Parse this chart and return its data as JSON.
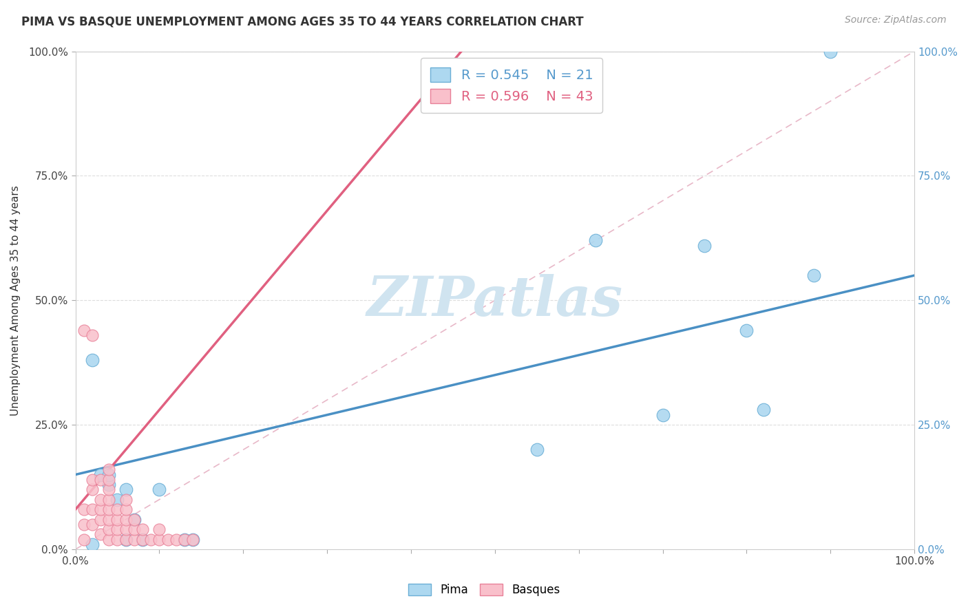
{
  "title": "PIMA VS BASQUE UNEMPLOYMENT AMONG AGES 35 TO 44 YEARS CORRELATION CHART",
  "source": "Source: ZipAtlas.com",
  "ylabel": "Unemployment Among Ages 35 to 44 years",
  "xlim": [
    0,
    1
  ],
  "ylim": [
    0,
    1
  ],
  "ytick_labels": [
    "0.0%",
    "25.0%",
    "50.0%",
    "75.0%",
    "100.0%"
  ],
  "ytick_values": [
    0.0,
    0.25,
    0.5,
    0.75,
    1.0
  ],
  "pima_R": 0.545,
  "pima_N": 21,
  "basque_R": 0.596,
  "basque_N": 43,
  "pima_color": "#ADD8F0",
  "basque_color": "#F9C0CB",
  "pima_edge_color": "#6BAFD6",
  "basque_edge_color": "#E88098",
  "pima_line_color": "#4A90C4",
  "basque_line_color": "#E06080",
  "diag_color": "#E8B8C8",
  "legend_pima_color": "#5599CC",
  "legend_basque_color": "#E06080",
  "watermark": "ZIPatlas",
  "watermark_color": "#D0E4F0",
  "pima_x": [
    0.02,
    0.03,
    0.04,
    0.04,
    0.05,
    0.06,
    0.07,
    0.08,
    0.1,
    0.13,
    0.14,
    0.55,
    0.62,
    0.7,
    0.75,
    0.8,
    0.82,
    0.88,
    0.02,
    0.06,
    0.9
  ],
  "pima_y": [
    0.38,
    0.15,
    0.13,
    0.15,
    0.1,
    0.12,
    0.06,
    0.02,
    0.12,
    0.02,
    0.02,
    0.2,
    0.62,
    0.27,
    0.61,
    0.44,
    0.28,
    0.55,
    0.01,
    0.02,
    1.0
  ],
  "basque_x": [
    0.01,
    0.01,
    0.01,
    0.02,
    0.02,
    0.02,
    0.02,
    0.03,
    0.03,
    0.03,
    0.03,
    0.03,
    0.04,
    0.04,
    0.04,
    0.04,
    0.04,
    0.04,
    0.04,
    0.04,
    0.05,
    0.05,
    0.05,
    0.05,
    0.06,
    0.06,
    0.06,
    0.06,
    0.06,
    0.07,
    0.07,
    0.07,
    0.08,
    0.08,
    0.09,
    0.1,
    0.1,
    0.11,
    0.12,
    0.13,
    0.14,
    0.01,
    0.02
  ],
  "basque_y": [
    0.02,
    0.05,
    0.08,
    0.05,
    0.08,
    0.12,
    0.14,
    0.03,
    0.06,
    0.08,
    0.1,
    0.14,
    0.02,
    0.04,
    0.06,
    0.08,
    0.1,
    0.12,
    0.14,
    0.16,
    0.02,
    0.04,
    0.06,
    0.08,
    0.02,
    0.04,
    0.06,
    0.08,
    0.1,
    0.02,
    0.04,
    0.06,
    0.02,
    0.04,
    0.02,
    0.02,
    0.04,
    0.02,
    0.02,
    0.02,
    0.02,
    0.44,
    0.43
  ]
}
